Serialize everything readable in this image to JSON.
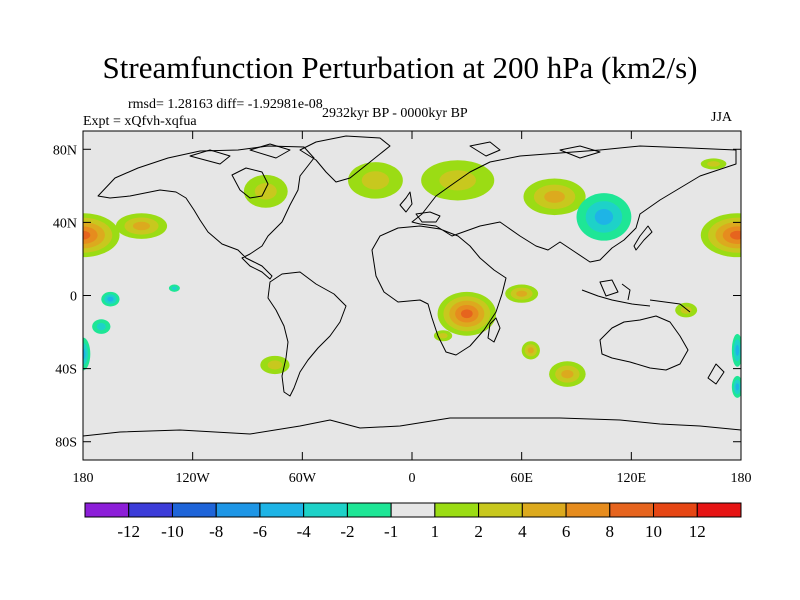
{
  "title": "Streamfunction Perturbation at 200 hPa (km2/s)",
  "stats": "rmsd= 1.28163 diff= -1.92981e-08",
  "experiment": "Expt = xQfvh-xqfua",
  "period": "2932kyr BP - 0000kyr BP",
  "season": "JJA",
  "map": {
    "background": "#e6e6e6",
    "lon_range": [
      -180,
      180
    ],
    "lat_range": [
      -90,
      90
    ],
    "lat_ticks": [
      {
        "value": 80,
        "label": "80N"
      },
      {
        "value": 40,
        "label": "40N"
      },
      {
        "value": 0,
        "label": "0"
      },
      {
        "value": -40,
        "label": "40S"
      },
      {
        "value": -80,
        "label": "80S"
      }
    ],
    "lon_ticks": [
      {
        "value": -180,
        "label": "180"
      },
      {
        "value": -120,
        "label": "120W"
      },
      {
        "value": -60,
        "label": "60W"
      },
      {
        "value": 0,
        "label": "0"
      },
      {
        "value": 60,
        "label": "60E"
      },
      {
        "value": 120,
        "label": "120E"
      },
      {
        "value": 180,
        "label": "180"
      }
    ]
  },
  "colorbar": {
    "colors": [
      "#8c1ed8",
      "#3c3cd8",
      "#1e64d8",
      "#1e96e6",
      "#1eb4e6",
      "#1ed2c8",
      "#1ee696",
      "#e6e6e6",
      "#9bdc14",
      "#c8c81e",
      "#dcaa1e",
      "#e68c1e",
      "#e6641e",
      "#e64614",
      "#e61414"
    ],
    "labels": [
      "-12",
      "-10",
      "-8",
      "-6",
      "-4",
      "-2",
      "-1",
      "1",
      "2",
      "4",
      "6",
      "8",
      "10",
      "12"
    ]
  },
  "anomalies": [
    {
      "lon": -180,
      "lat": 33,
      "rlon": 20,
      "rlat": 12,
      "level": 4
    },
    {
      "lon": 178,
      "lat": 33,
      "rlon": 20,
      "rlat": 12,
      "level": 4
    },
    {
      "lon": -148,
      "lat": 38,
      "rlon": 14,
      "rlat": 7,
      "level": 2
    },
    {
      "lon": -80,
      "lat": 57,
      "rlon": 12,
      "rlat": 9,
      "level": 1
    },
    {
      "lon": -20,
      "lat": 63,
      "rlon": 15,
      "rlat": 10,
      "level": 1
    },
    {
      "lon": 25,
      "lat": 63,
      "rlon": 20,
      "rlat": 11,
      "level": 1
    },
    {
      "lon": 78,
      "lat": 54,
      "rlon": 17,
      "rlat": 10,
      "level": 2
    },
    {
      "lon": 105,
      "lat": 43,
      "rlon": 15,
      "rlat": 13,
      "level": -2
    },
    {
      "lon": 165,
      "lat": 72,
      "rlon": 7,
      "rlat": 3,
      "level": 1
    },
    {
      "lon": -130,
      "lat": 4,
      "rlon": 3,
      "rlat": 2,
      "level": -1
    },
    {
      "lon": 30,
      "lat": -10,
      "rlon": 16,
      "rlat": 12,
      "level": 4
    },
    {
      "lon": 60,
      "lat": 1,
      "rlon": 9,
      "rlat": 5,
      "level": 2
    },
    {
      "lon": 17,
      "lat": -22,
      "rlon": 5,
      "rlat": 3,
      "level": 1
    },
    {
      "lon": 65,
      "lat": -30,
      "rlon": 5,
      "rlat": 5,
      "level": 2
    },
    {
      "lon": 85,
      "lat": -43,
      "rlon": 10,
      "rlat": 7,
      "level": 2
    },
    {
      "lon": 150,
      "lat": -8,
      "rlon": 6,
      "rlat": 4,
      "level": 1
    },
    {
      "lon": -165,
      "lat": -2,
      "rlon": 5,
      "rlat": 4,
      "level": -2
    },
    {
      "lon": 178,
      "lat": -30,
      "rlon": 3,
      "rlat": 9,
      "level": -2
    },
    {
      "lon": 178,
      "lat": -50,
      "rlon": 3,
      "rlat": 6,
      "level": -2
    },
    {
      "lon": -180,
      "lat": -32,
      "rlon": 4,
      "rlat": 9,
      "level": -2
    },
    {
      "lon": -75,
      "lat": -38,
      "rlon": 8,
      "rlat": 5,
      "level": 1
    },
    {
      "lon": -170,
      "lat": -17,
      "rlon": 5,
      "rlat": 4,
      "level": -1
    }
  ]
}
